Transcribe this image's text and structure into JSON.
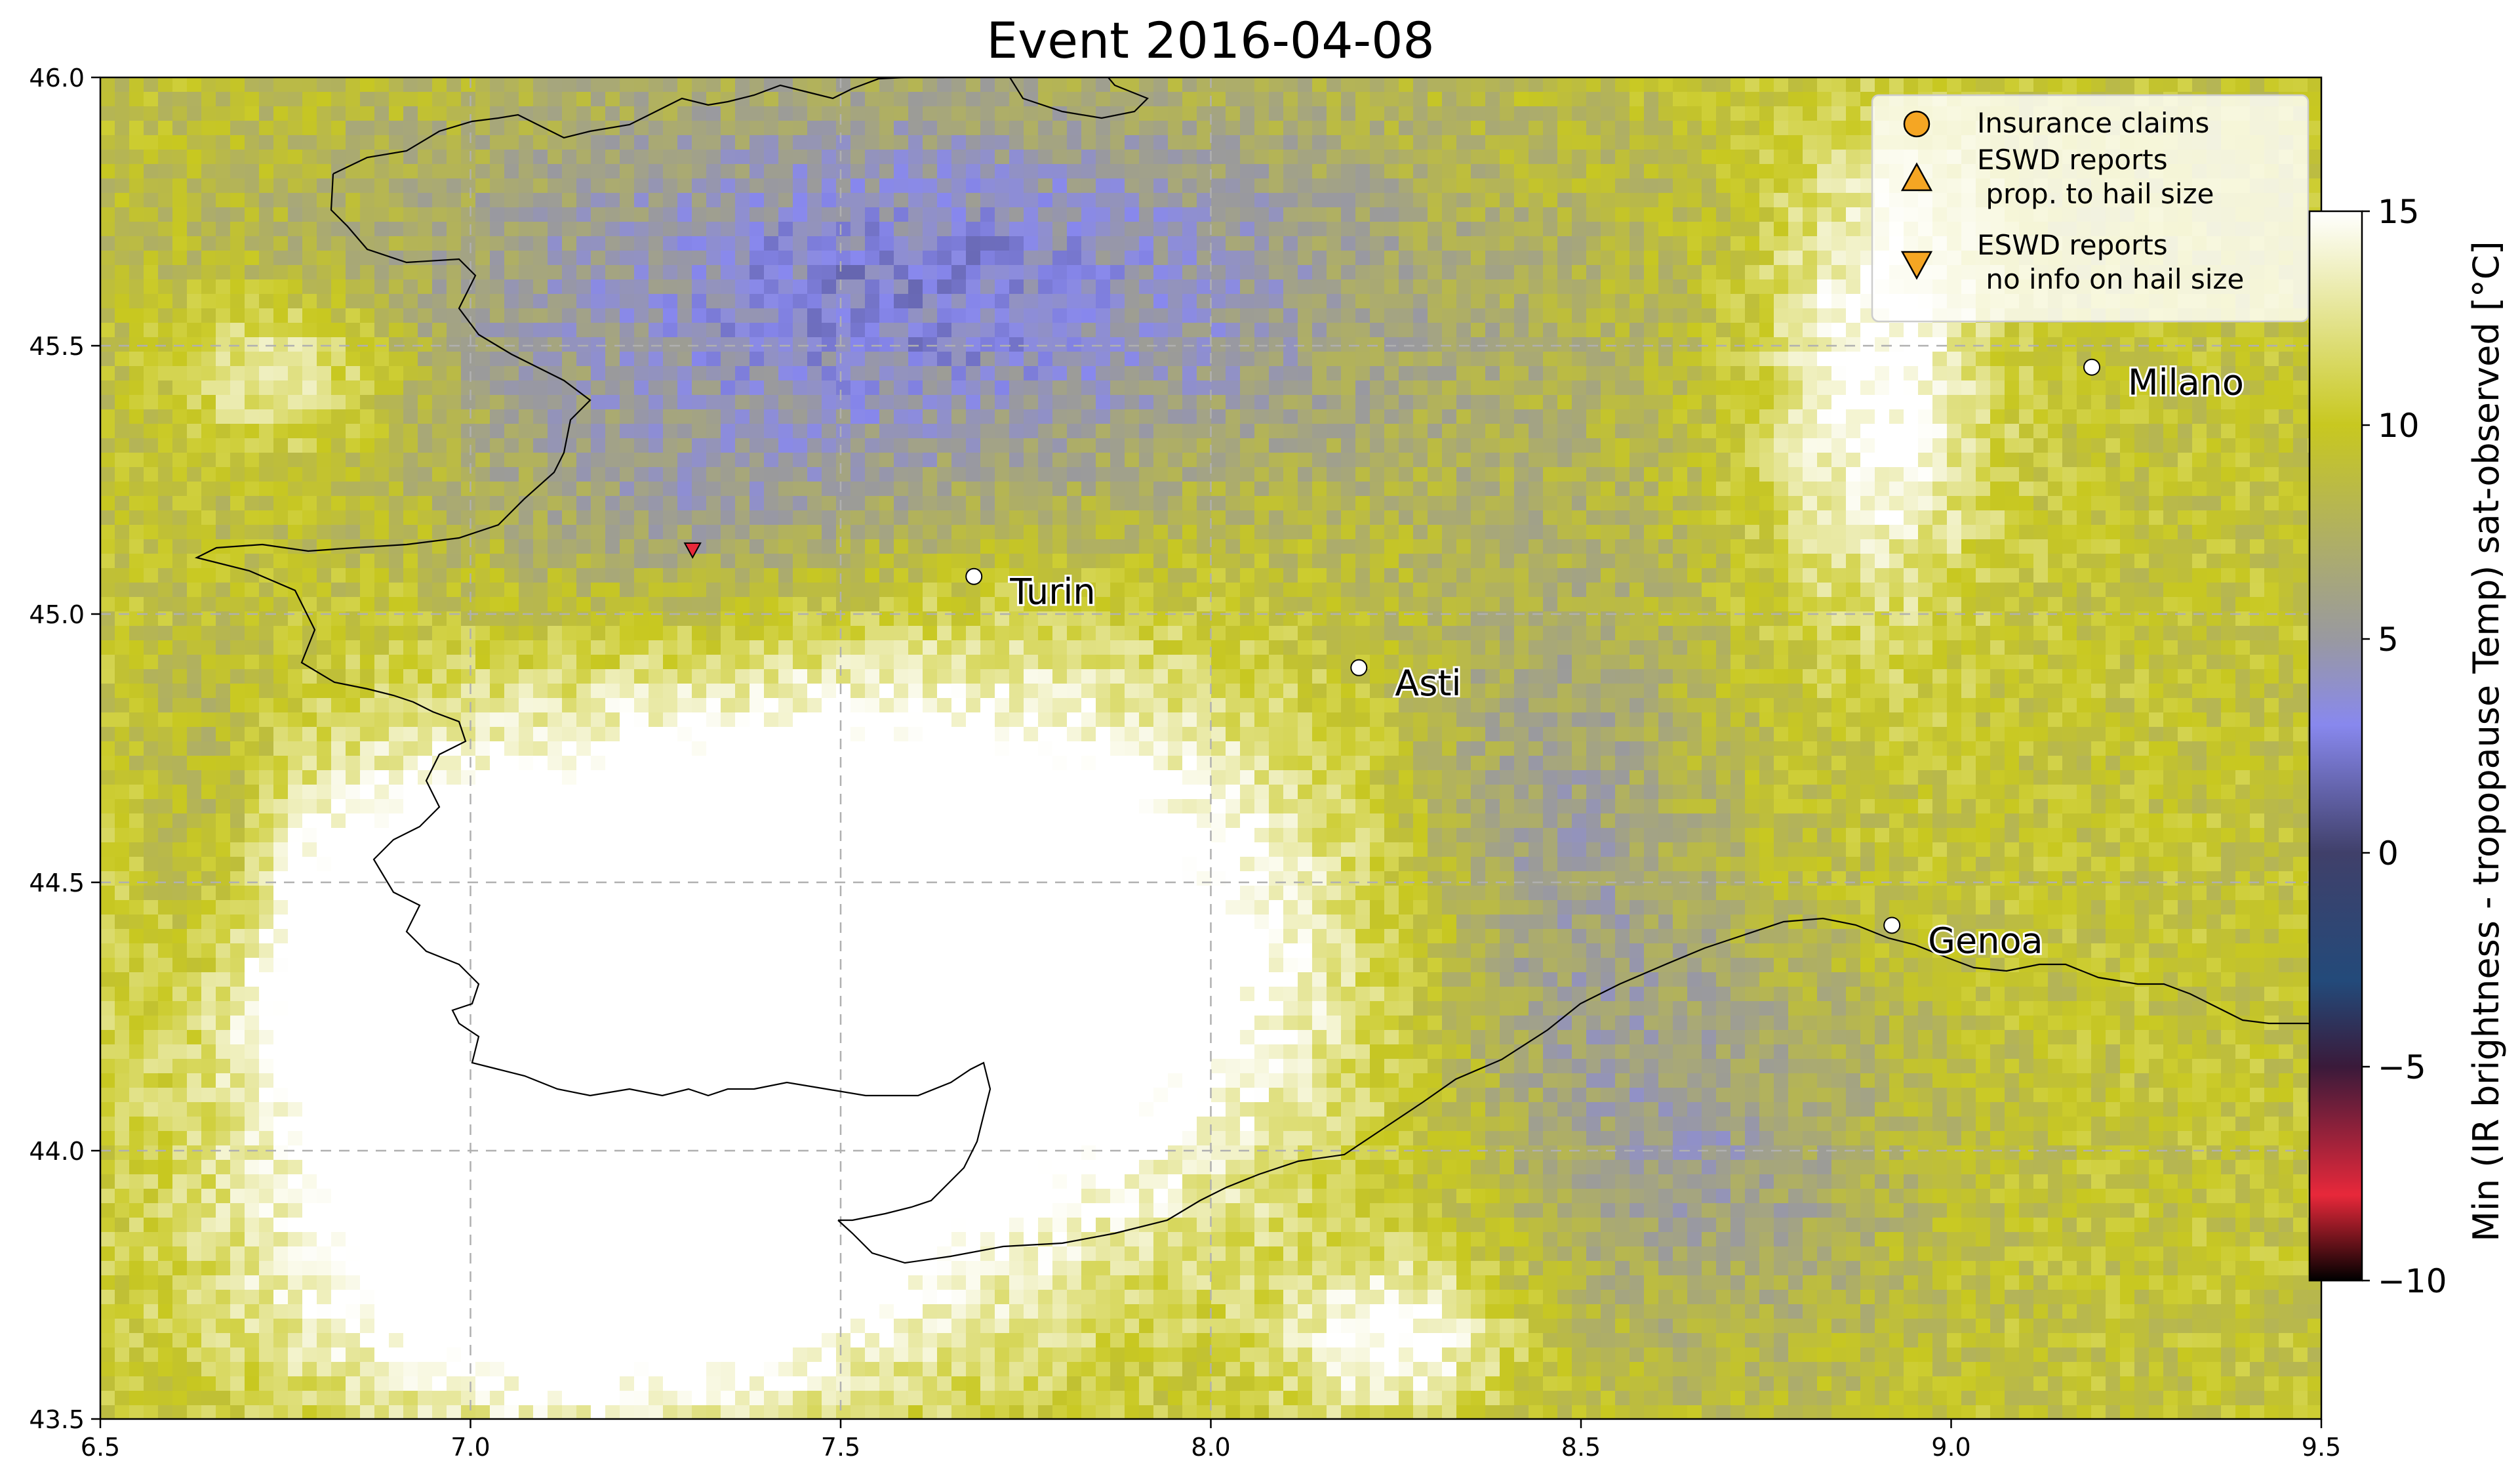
{
  "chart_data": {
    "type": "heatmap",
    "title": "Event 2016-04-08",
    "xlim": [
      6.5,
      9.5
    ],
    "ylim": [
      43.5,
      46.0
    ],
    "x_ticks": [
      "6.5",
      "7.0",
      "7.5",
      "8.0",
      "8.5",
      "9.0",
      "9.5"
    ],
    "y_ticks": [
      "43.5",
      "44.0",
      "44.5",
      "45.0",
      "45.5",
      "46.0"
    ],
    "grid": "dashed gray at 7.0/7.5/8.0 lon and 44.0/44.5/45.0/45.5 lat",
    "colorbar": {
      "label": "Min (IR brightness - tropopause Temp) sat-observed [°C]",
      "range": [
        -10,
        15
      ],
      "ticks": [
        "−10",
        "−5",
        "0",
        "5",
        "10",
        "15"
      ],
      "colors": {
        "-10": "#000000",
        "-8": "#e8283a",
        "-5": "#3a1a3a",
        "-3": "#234a7a",
        "0": "#40406a",
        "3": "#8888ee",
        "5": "#9999a0",
        "10": "#c8c820",
        "15": "#ffffff"
      }
    },
    "cities": [
      {
        "name": "Turin",
        "lon": 7.68,
        "lat": 45.07
      },
      {
        "name": "Asti",
        "lon": 8.2,
        "lat": 44.9
      },
      {
        "name": "Milano",
        "lon": 9.19,
        "lat": 45.46
      },
      {
        "name": "Genoa",
        "lon": 8.92,
        "lat": 44.42
      }
    ],
    "eswd_reports_no_size": [
      {
        "lon": 7.3,
        "lat": 45.12,
        "color": "#e8283a"
      }
    ],
    "legend": {
      "placement": "top-right",
      "entries": [
        {
          "marker": "circle",
          "color": "#f5a623",
          "label": "Insurance claims"
        },
        {
          "marker": "triangle-up",
          "color": "#f5a623",
          "label": "ESWD reports\n prop. to hail size"
        },
        {
          "marker": "triangle-down",
          "color": "#f5a623",
          "label": "ESWD reports\n no info on hail size"
        }
      ]
    }
  }
}
